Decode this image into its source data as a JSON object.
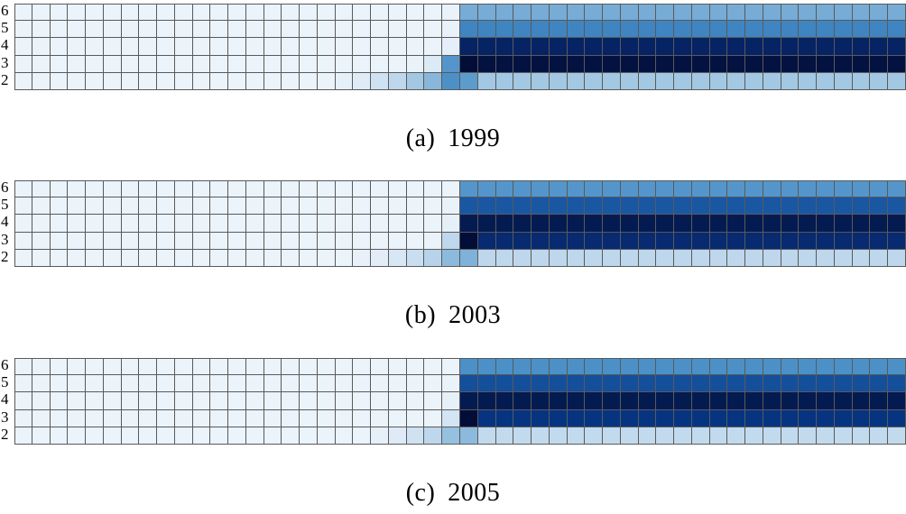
{
  "figure": {
    "panels": [
      {
        "label": "(a)",
        "year": "1999"
      },
      {
        "label": "(b)",
        "year": "2003"
      },
      {
        "label": "(c)",
        "year": "2005"
      }
    ]
  },
  "chart_data": [
    {
      "type": "heatmap",
      "title": "",
      "caption": "(a) 1999",
      "y_categories": [
        "6",
        "5",
        "4",
        "3",
        "2"
      ],
      "x_columns": 50,
      "value_range": [
        0,
        1
      ],
      "colormap": "Blues",
      "rows": [
        {
          "y": "6",
          "values": [
            0.04,
            0.04,
            0.04,
            0.04,
            0.04,
            0.04,
            0.04,
            0.04,
            0.04,
            0.04,
            0.04,
            0.04,
            0.04,
            0.04,
            0.04,
            0.04,
            0.04,
            0.04,
            0.04,
            0.04,
            0.04,
            0.04,
            0.04,
            0.04,
            0.05,
            0.5,
            0.5,
            0.5,
            0.5,
            0.5,
            0.5,
            0.5,
            0.5,
            0.5,
            0.5,
            0.5,
            0.5,
            0.5,
            0.5,
            0.5,
            0.5,
            0.5,
            0.5,
            0.5,
            0.5,
            0.5,
            0.5,
            0.5,
            0.5,
            0.5
          ]
        },
        {
          "y": "5",
          "values": [
            0.04,
            0.04,
            0.04,
            0.04,
            0.04,
            0.04,
            0.04,
            0.04,
            0.04,
            0.04,
            0.04,
            0.04,
            0.04,
            0.04,
            0.04,
            0.04,
            0.04,
            0.04,
            0.04,
            0.04,
            0.04,
            0.04,
            0.04,
            0.04,
            0.06,
            0.64,
            0.64,
            0.64,
            0.64,
            0.64,
            0.64,
            0.64,
            0.64,
            0.64,
            0.64,
            0.64,
            0.64,
            0.64,
            0.64,
            0.64,
            0.64,
            0.64,
            0.64,
            0.64,
            0.64,
            0.64,
            0.64,
            0.64,
            0.64,
            0.64
          ]
        },
        {
          "y": "4",
          "values": [
            0.04,
            0.04,
            0.04,
            0.04,
            0.04,
            0.04,
            0.04,
            0.04,
            0.04,
            0.04,
            0.04,
            0.04,
            0.04,
            0.04,
            0.04,
            0.04,
            0.04,
            0.04,
            0.04,
            0.04,
            0.04,
            0.04,
            0.04,
            0.04,
            0.1,
            0.95,
            0.95,
            0.95,
            0.95,
            0.95,
            0.95,
            0.95,
            0.95,
            0.95,
            0.95,
            0.95,
            0.95,
            0.95,
            0.95,
            0.95,
            0.95,
            0.95,
            0.95,
            0.95,
            0.95,
            0.95,
            0.95,
            0.95,
            0.95,
            0.95
          ]
        },
        {
          "y": "3",
          "values": [
            0.04,
            0.04,
            0.04,
            0.04,
            0.04,
            0.04,
            0.04,
            0.04,
            0.04,
            0.04,
            0.04,
            0.04,
            0.04,
            0.04,
            0.04,
            0.04,
            0.04,
            0.04,
            0.04,
            0.04,
            0.04,
            0.04,
            0.05,
            0.16,
            0.58,
            1.0,
            0.99,
            0.99,
            0.99,
            0.99,
            0.99,
            0.99,
            0.99,
            0.99,
            0.99,
            0.99,
            0.99,
            0.99,
            0.99,
            0.99,
            0.99,
            0.99,
            0.99,
            0.99,
            0.99,
            0.99,
            0.99,
            0.99,
            0.99,
            0.99
          ]
        },
        {
          "y": "2",
          "values": [
            0.04,
            0.04,
            0.04,
            0.04,
            0.04,
            0.04,
            0.04,
            0.04,
            0.04,
            0.04,
            0.04,
            0.04,
            0.04,
            0.04,
            0.04,
            0.04,
            0.04,
            0.04,
            0.08,
            0.14,
            0.22,
            0.3,
            0.38,
            0.46,
            0.6,
            0.56,
            0.38,
            0.38,
            0.38,
            0.38,
            0.38,
            0.38,
            0.38,
            0.38,
            0.38,
            0.38,
            0.38,
            0.38,
            0.38,
            0.38,
            0.38,
            0.38,
            0.38,
            0.38,
            0.38,
            0.38,
            0.38,
            0.38,
            0.38,
            0.38
          ]
        }
      ]
    },
    {
      "type": "heatmap",
      "title": "",
      "caption": "(b) 2003",
      "y_categories": [
        "6",
        "5",
        "4",
        "3",
        "2"
      ],
      "x_columns": 50,
      "value_range": [
        0,
        1
      ],
      "colormap": "Blues",
      "rows": [
        {
          "y": "6",
          "values": [
            0.04,
            0.04,
            0.04,
            0.04,
            0.04,
            0.04,
            0.04,
            0.04,
            0.04,
            0.04,
            0.04,
            0.04,
            0.04,
            0.04,
            0.04,
            0.04,
            0.04,
            0.04,
            0.04,
            0.04,
            0.04,
            0.04,
            0.04,
            0.04,
            0.04,
            0.58,
            0.58,
            0.58,
            0.58,
            0.58,
            0.58,
            0.58,
            0.58,
            0.58,
            0.58,
            0.58,
            0.58,
            0.58,
            0.58,
            0.58,
            0.58,
            0.58,
            0.58,
            0.58,
            0.58,
            0.58,
            0.58,
            0.58,
            0.58,
            0.58
          ]
        },
        {
          "y": "5",
          "values": [
            0.04,
            0.04,
            0.04,
            0.04,
            0.04,
            0.04,
            0.04,
            0.04,
            0.04,
            0.04,
            0.04,
            0.04,
            0.04,
            0.04,
            0.04,
            0.04,
            0.04,
            0.04,
            0.04,
            0.04,
            0.04,
            0.04,
            0.04,
            0.04,
            0.05,
            0.78,
            0.78,
            0.78,
            0.78,
            0.78,
            0.78,
            0.78,
            0.78,
            0.78,
            0.78,
            0.78,
            0.78,
            0.78,
            0.78,
            0.78,
            0.78,
            0.78,
            0.78,
            0.78,
            0.78,
            0.78,
            0.78,
            0.78,
            0.78,
            0.78
          ]
        },
        {
          "y": "4",
          "values": [
            0.04,
            0.04,
            0.04,
            0.04,
            0.04,
            0.04,
            0.04,
            0.04,
            0.04,
            0.04,
            0.04,
            0.04,
            0.04,
            0.04,
            0.04,
            0.04,
            0.04,
            0.04,
            0.04,
            0.04,
            0.04,
            0.04,
            0.04,
            0.04,
            0.08,
            0.97,
            0.97,
            0.97,
            0.97,
            0.97,
            0.97,
            0.97,
            0.97,
            0.97,
            0.97,
            0.97,
            0.97,
            0.97,
            0.97,
            0.97,
            0.97,
            0.97,
            0.97,
            0.97,
            0.97,
            0.97,
            0.97,
            0.97,
            0.97,
            0.97
          ]
        },
        {
          "y": "3",
          "values": [
            0.04,
            0.04,
            0.04,
            0.04,
            0.04,
            0.04,
            0.04,
            0.04,
            0.04,
            0.04,
            0.04,
            0.04,
            0.04,
            0.04,
            0.04,
            0.04,
            0.04,
            0.04,
            0.04,
            0.04,
            0.04,
            0.04,
            0.04,
            0.05,
            0.3,
            1.0,
            0.92,
            0.92,
            0.92,
            0.92,
            0.92,
            0.92,
            0.92,
            0.92,
            0.92,
            0.92,
            0.92,
            0.92,
            0.92,
            0.92,
            0.92,
            0.92,
            0.92,
            0.92,
            0.92,
            0.92,
            0.92,
            0.92,
            0.92,
            0.92
          ]
        },
        {
          "y": "2",
          "values": [
            0.04,
            0.04,
            0.04,
            0.04,
            0.04,
            0.04,
            0.04,
            0.04,
            0.04,
            0.04,
            0.04,
            0.04,
            0.04,
            0.04,
            0.04,
            0.04,
            0.04,
            0.04,
            0.04,
            0.07,
            0.12,
            0.18,
            0.25,
            0.32,
            0.45,
            0.48,
            0.3,
            0.3,
            0.3,
            0.3,
            0.3,
            0.3,
            0.3,
            0.3,
            0.3,
            0.3,
            0.3,
            0.3,
            0.3,
            0.3,
            0.3,
            0.3,
            0.3,
            0.3,
            0.3,
            0.3,
            0.3,
            0.3,
            0.3,
            0.3
          ]
        }
      ]
    },
    {
      "type": "heatmap",
      "title": "",
      "caption": "(c) 2005",
      "y_categories": [
        "6",
        "5",
        "4",
        "3",
        "2"
      ],
      "x_columns": 50,
      "value_range": [
        0,
        1
      ],
      "colormap": "Blues",
      "rows": [
        {
          "y": "6",
          "values": [
            0.04,
            0.04,
            0.04,
            0.04,
            0.04,
            0.04,
            0.04,
            0.04,
            0.04,
            0.04,
            0.04,
            0.04,
            0.04,
            0.04,
            0.04,
            0.04,
            0.04,
            0.04,
            0.04,
            0.04,
            0.04,
            0.04,
            0.04,
            0.04,
            0.04,
            0.6,
            0.6,
            0.6,
            0.6,
            0.6,
            0.6,
            0.6,
            0.6,
            0.6,
            0.6,
            0.6,
            0.6,
            0.6,
            0.6,
            0.6,
            0.6,
            0.6,
            0.6,
            0.6,
            0.6,
            0.6,
            0.6,
            0.6,
            0.6,
            0.6
          ]
        },
        {
          "y": "5",
          "values": [
            0.04,
            0.04,
            0.04,
            0.04,
            0.04,
            0.04,
            0.04,
            0.04,
            0.04,
            0.04,
            0.04,
            0.04,
            0.04,
            0.04,
            0.04,
            0.04,
            0.04,
            0.04,
            0.04,
            0.04,
            0.04,
            0.04,
            0.04,
            0.04,
            0.05,
            0.8,
            0.8,
            0.8,
            0.8,
            0.8,
            0.8,
            0.8,
            0.8,
            0.8,
            0.8,
            0.8,
            0.8,
            0.8,
            0.8,
            0.8,
            0.8,
            0.8,
            0.8,
            0.8,
            0.8,
            0.8,
            0.8,
            0.8,
            0.8,
            0.8
          ]
        },
        {
          "y": "4",
          "values": [
            0.04,
            0.04,
            0.04,
            0.04,
            0.04,
            0.04,
            0.04,
            0.04,
            0.04,
            0.04,
            0.04,
            0.04,
            0.04,
            0.04,
            0.04,
            0.04,
            0.04,
            0.04,
            0.04,
            0.04,
            0.04,
            0.04,
            0.04,
            0.04,
            0.08,
            0.97,
            0.97,
            0.97,
            0.97,
            0.97,
            0.97,
            0.97,
            0.97,
            0.97,
            0.97,
            0.97,
            0.97,
            0.97,
            0.97,
            0.97,
            0.97,
            0.97,
            0.97,
            0.97,
            0.97,
            0.97,
            0.97,
            0.97,
            0.97,
            0.97
          ]
        },
        {
          "y": "3",
          "values": [
            0.04,
            0.04,
            0.04,
            0.04,
            0.04,
            0.04,
            0.04,
            0.04,
            0.04,
            0.04,
            0.04,
            0.04,
            0.04,
            0.04,
            0.04,
            0.04,
            0.04,
            0.04,
            0.04,
            0.04,
            0.04,
            0.04,
            0.04,
            0.04,
            0.2,
            1.0,
            0.88,
            0.88,
            0.88,
            0.88,
            0.88,
            0.88,
            0.88,
            0.88,
            0.88,
            0.88,
            0.88,
            0.88,
            0.88,
            0.88,
            0.88,
            0.88,
            0.88,
            0.88,
            0.88,
            0.88,
            0.88,
            0.88,
            0.88,
            0.88
          ]
        },
        {
          "y": "2",
          "values": [
            0.04,
            0.04,
            0.04,
            0.04,
            0.04,
            0.04,
            0.04,
            0.04,
            0.04,
            0.04,
            0.04,
            0.04,
            0.04,
            0.04,
            0.04,
            0.04,
            0.04,
            0.04,
            0.04,
            0.04,
            0.08,
            0.15,
            0.22,
            0.3,
            0.42,
            0.45,
            0.28,
            0.28,
            0.28,
            0.28,
            0.28,
            0.28,
            0.28,
            0.28,
            0.28,
            0.28,
            0.28,
            0.28,
            0.28,
            0.28,
            0.28,
            0.28,
            0.28,
            0.28,
            0.28,
            0.28,
            0.28,
            0.28,
            0.28,
            0.28
          ]
        }
      ]
    }
  ]
}
